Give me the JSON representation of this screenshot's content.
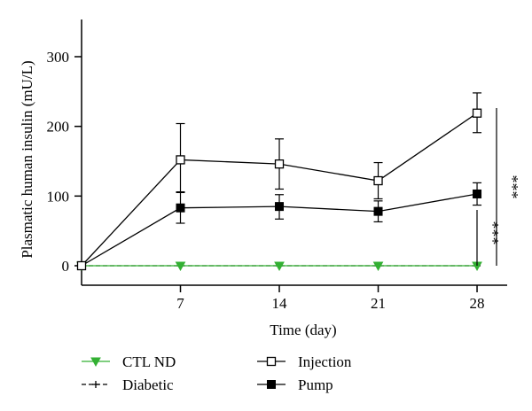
{
  "chart_data": {
    "type": "line",
    "xlabel": "Time (day)",
    "ylabel": "Plasmatic human insulin (mU/L)",
    "x": [
      0,
      7,
      14,
      21,
      28
    ],
    "x_ticks": [
      7,
      14,
      21,
      28
    ],
    "y_ticks": [
      0,
      100,
      200,
      300
    ],
    "xlim": [
      0,
      30
    ],
    "ylim": [
      -25,
      350
    ],
    "series": [
      {
        "name": "Injection",
        "marker": "open-square",
        "color": "#000000",
        "values": [
          0,
          152,
          146,
          122,
          219
        ],
        "error_high": [
          0,
          204,
          182,
          148,
          248
        ],
        "error_low": [
          0,
          105,
          110,
          96,
          191
        ]
      },
      {
        "name": "Pump",
        "marker": "filled-square",
        "color": "#000000",
        "values": [
          0,
          83,
          85,
          78,
          103
        ],
        "error_high": [
          0,
          106,
          102,
          93,
          119
        ],
        "error_low": [
          0,
          61,
          67,
          63,
          87
        ]
      },
      {
        "name": "CTL ND",
        "marker": "triangle-down",
        "color": "#33b033",
        "values": [
          0,
          0,
          0,
          0,
          0
        ]
      },
      {
        "name": "Diabetic",
        "marker": "plus",
        "color": "#000000",
        "line_style": "dashed",
        "values": [
          0,
          0,
          0,
          0,
          0
        ]
      }
    ],
    "annotations": [
      {
        "text": "***",
        "span": "Pump vs CTL ND at day 28"
      },
      {
        "text": "***",
        "span": "Injection vs CTL ND at day 28"
      }
    ],
    "legend": {
      "placement": "bottom",
      "items": [
        "CTL ND",
        "Diabetic",
        "Injection",
        "Pump"
      ]
    },
    "grid": false
  }
}
